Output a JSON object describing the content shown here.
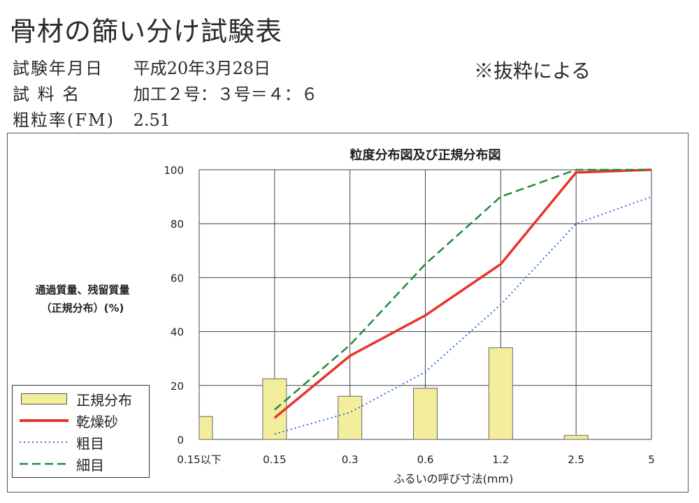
{
  "header": {
    "title": "骨材の篩い分け試験表",
    "rows": [
      {
        "label": "試験年月日",
        "value": "平成20年3月28日"
      },
      {
        "label": "試 料 名",
        "value": "加工２号：３号＝４：６"
      },
      {
        "label": "粗粒率(FM)",
        "value": "2.51"
      }
    ],
    "note": "※抜粋による"
  },
  "chart_data": {
    "type": "bar+line",
    "title": "粒度分布図及び正規分布図",
    "xlabel": "ふるいの呼び寸法(mm)",
    "ylabel": "通過質量、残留質量\n（正規分布）(%)",
    "categories": [
      "0.15以下",
      "0.15",
      "0.3",
      "0.6",
      "1.2",
      "2.5",
      "5"
    ],
    "ylim": [
      0,
      100
    ],
    "yticks": [
      0,
      20,
      40,
      60,
      80,
      100
    ],
    "grid": true,
    "legend_position": "bottom-left",
    "bars": {
      "name": "正規分布",
      "color": "#f3ee9c",
      "values": [
        8.5,
        22.5,
        16,
        19,
        34,
        1.5,
        0
      ]
    },
    "series": [
      {
        "name": "乾燥砂",
        "style": "solid",
        "color": "#e8352b",
        "values": [
          null,
          8,
          31,
          46,
          65,
          99,
          100
        ]
      },
      {
        "name": "粗目",
        "style": "dotted",
        "color": "#2f6fd0",
        "values": [
          null,
          2,
          10,
          25,
          50,
          80,
          90
        ]
      },
      {
        "name": "細目",
        "style": "dashed",
        "color": "#1f8a3a",
        "values": [
          null,
          11,
          35,
          65,
          90,
          100,
          100
        ]
      }
    ]
  }
}
